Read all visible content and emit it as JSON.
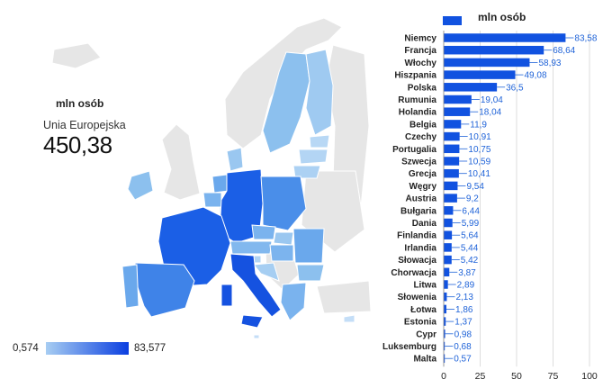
{
  "map": {
    "unit_title": "mln osób",
    "region_name": "Unia Europejska",
    "total": "450,38",
    "scale_min": "0,574",
    "scale_max": "83,577"
  },
  "chart_data": {
    "type": "bar",
    "orientation": "horizontal",
    "legend": {
      "label": "mln osób",
      "position": "top"
    },
    "color": "#1152e0",
    "categories": [
      "Niemcy",
      "Francja",
      "Włochy",
      "Hiszpania",
      "Polska",
      "Rumunia",
      "Holandia",
      "Belgia",
      "Czechy",
      "Portugalia",
      "Szwecja",
      "Grecja",
      "Węgry",
      "Austria",
      "Bułgaria",
      "Dania",
      "Finlandia",
      "Irlandia",
      "Słowacja",
      "Chorwacja",
      "Litwa",
      "Słowenia",
      "Łotwa",
      "Estonia",
      "Cypr",
      "Luksemburg",
      "Malta"
    ],
    "values": [
      83.58,
      68.64,
      58.93,
      49.08,
      36.5,
      19.04,
      18.04,
      11.9,
      10.91,
      10.75,
      10.59,
      10.41,
      9.54,
      9.2,
      6.44,
      5.99,
      5.64,
      5.44,
      5.42,
      3.87,
      2.89,
      2.13,
      1.86,
      1.37,
      0.98,
      0.68,
      0.57
    ],
    "value_labels": [
      "83,58",
      "68,64",
      "58,93",
      "49,08",
      "36,5",
      "19,04",
      "18,04",
      "11,9",
      "10,91",
      "10,75",
      "10,59",
      "10,41",
      "9,54",
      "9,2",
      "6,44",
      "5,99",
      "5,64",
      "5,44",
      "5,42",
      "3,87",
      "2,89",
      "2,13",
      "1,86",
      "1,37",
      "0,98",
      "0,68",
      "0,57"
    ],
    "xlim": [
      0,
      100
    ],
    "xticks": [
      0,
      25,
      50,
      75,
      100
    ],
    "grid": true
  }
}
